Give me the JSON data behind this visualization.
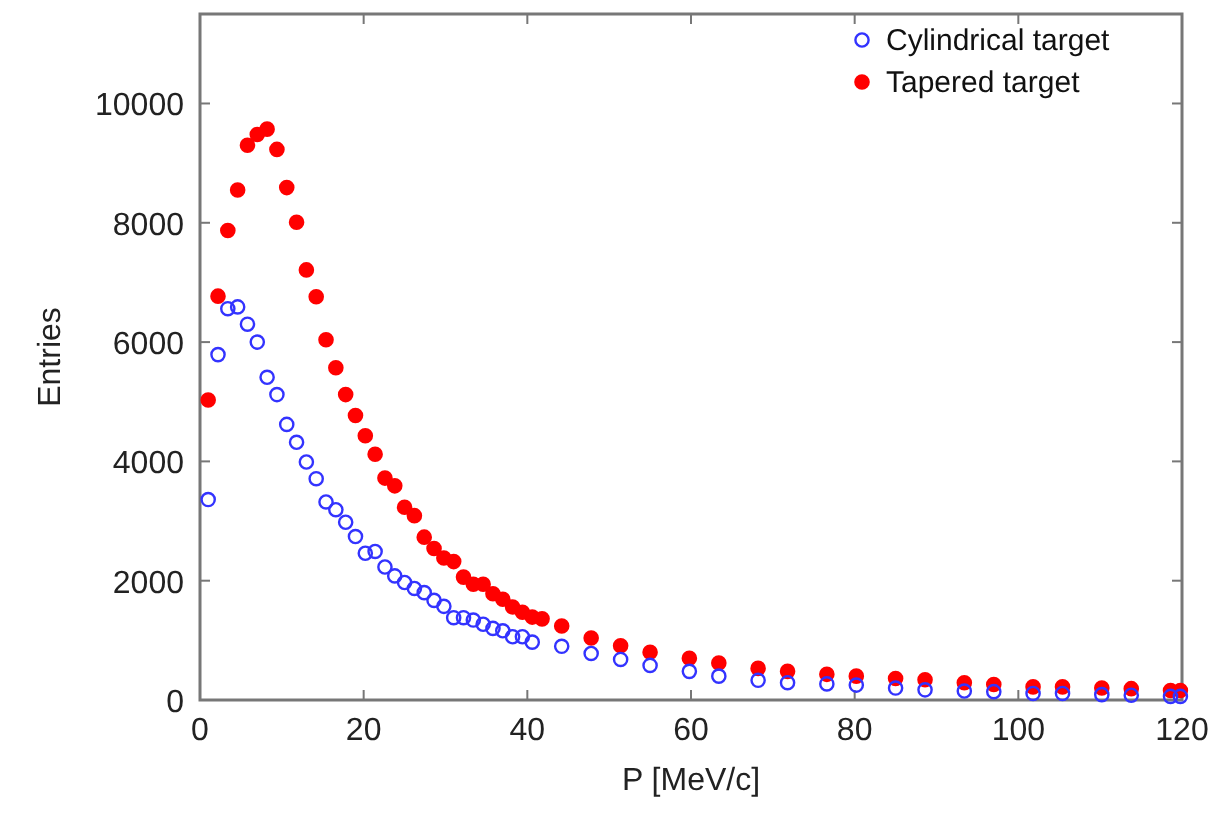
{
  "chart_data": {
    "type": "scatter",
    "xlabel": "P [MeV/c]",
    "ylabel": "Entries",
    "xlim": [
      0,
      120
    ],
    "xticks": [
      0,
      20,
      40,
      60,
      80,
      100,
      120
    ],
    "ylim": [
      0,
      11500
    ],
    "yticks": [
      0,
      2000,
      4000,
      6000,
      8000,
      10000
    ],
    "grid": false,
    "legend": "top right",
    "marker": "circle",
    "series": [
      {
        "name": "Cylindrical target",
        "color": "#3333ff",
        "x": [
          1,
          2.2,
          3.4,
          4.6,
          5.8,
          7,
          8.2,
          9.4,
          10.6,
          11.8,
          13,
          14.2,
          15.4,
          16.6,
          17.8,
          19,
          20.2,
          21.4,
          22.6,
          23.8,
          25,
          26.2,
          27.4,
          28.6,
          29.8,
          31,
          32.2,
          33.4,
          34.6,
          35.8,
          37,
          38.2,
          39.4,
          40.6,
          44.2,
          47.8,
          51.4,
          55,
          59.8,
          63.4,
          68.2,
          71.8,
          76.6,
          80.2,
          85,
          88.6,
          93.4,
          97,
          101.8,
          105.4,
          110.2,
          113.8,
          118.6,
          119.8
        ],
        "values": [
          3360,
          5790,
          6560,
          6590,
          6300,
          6000,
          5410,
          5120,
          4620,
          4320,
          3990,
          3710,
          3320,
          3190,
          2980,
          2740,
          2460,
          2490,
          2230,
          2080,
          1970,
          1870,
          1800,
          1670,
          1570,
          1380,
          1380,
          1340,
          1270,
          1200,
          1160,
          1060,
          1060,
          970,
          900,
          780,
          680,
          580,
          480,
          400,
          330,
          290,
          270,
          250,
          200,
          170,
          150,
          140,
          110,
          110,
          90,
          80,
          60,
          60
        ]
      },
      {
        "name": "Tapered target",
        "color": "#ff0000",
        "x": [
          1,
          2.2,
          3.4,
          4.6,
          5.8,
          7,
          8.2,
          9.4,
          10.6,
          11.8,
          13,
          14.2,
          15.4,
          16.6,
          17.8,
          19,
          20.2,
          21.4,
          22.6,
          23.8,
          25,
          26.2,
          27.4,
          28.6,
          29.8,
          31,
          32.2,
          33.4,
          34.6,
          35.8,
          37,
          38.2,
          39.4,
          40.6,
          41.8,
          44.2,
          47.8,
          51.4,
          55,
          59.8,
          63.4,
          68.2,
          71.8,
          76.6,
          80.2,
          85,
          88.6,
          93.4,
          97,
          101.8,
          105.4,
          110.2,
          113.8,
          118.6,
          119.8
        ],
        "values": [
          5030,
          6770,
          7870,
          8550,
          9300,
          9480,
          9570,
          9230,
          8590,
          8010,
          7210,
          6760,
          6040,
          5570,
          5120,
          4770,
          4430,
          4120,
          3720,
          3590,
          3230,
          3090,
          2730,
          2540,
          2380,
          2320,
          2060,
          1940,
          1940,
          1780,
          1690,
          1560,
          1470,
          1390,
          1360,
          1240,
          1040,
          910,
          800,
          700,
          620,
          530,
          480,
          430,
          400,
          360,
          340,
          290,
          260,
          220,
          220,
          200,
          190,
          160,
          160
        ]
      }
    ]
  }
}
